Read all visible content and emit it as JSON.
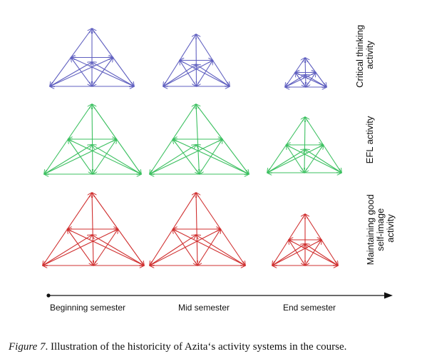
{
  "rows": [
    {
      "label_lines": [
        "Critical thinking",
        "activity"
      ],
      "color": "#6060c0"
    },
    {
      "label_lines": [
        "EFL activity"
      ],
      "color": "#3cc060"
    },
    {
      "label_lines": [
        "Maintaining good",
        "self-image",
        "activity"
      ],
      "color": "#d03030"
    }
  ],
  "timeline": {
    "labels": [
      "Beginning semester",
      "Mid semester",
      "End semester"
    ]
  },
  "caption": {
    "figure_label": "Figure 7",
    "text": ". Illustration of the historicity of Azita‘s activity systems in the course."
  }
}
